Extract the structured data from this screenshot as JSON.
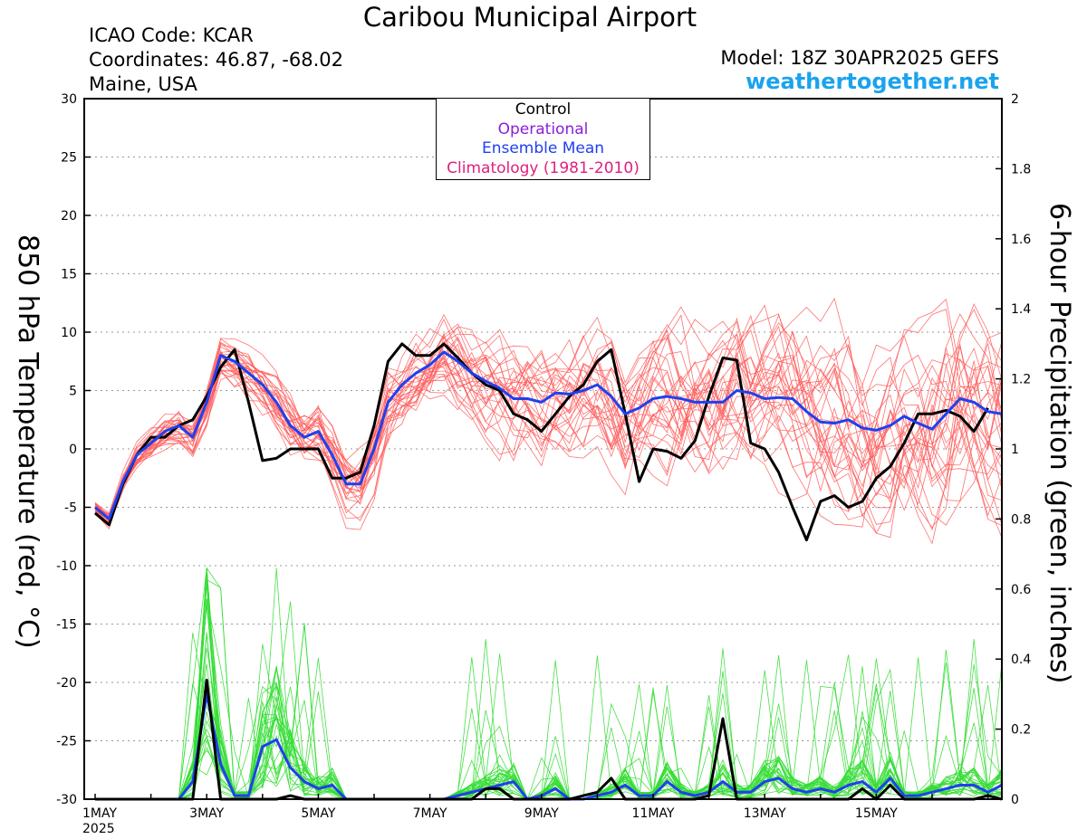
{
  "header": {
    "title": "Caribou Municipal Airport",
    "icao": "ICAO Code: KCAR",
    "coords": "Coordinates: 46.87, -68.02",
    "region": "Maine, USA",
    "model": "Model: 18Z 30APR2025 GEFS",
    "brand": "weathertogether.net"
  },
  "colors": {
    "ensemble_temp": "#ff5a5a",
    "ensemble_precip": "#33dd33",
    "control": "#000000",
    "operational": "#8a1ed8",
    "mean": "#2040ee",
    "climatology": "#e0207e",
    "brand": "#1aa3ee"
  },
  "chart_data": {
    "type": "line",
    "xlabel_ticks": [
      "1MAY\n2025",
      "3MAY",
      "5MAY",
      "7MAY",
      "9MAY",
      "11MAY",
      "13MAY",
      "15MAY"
    ],
    "x_start": "2025-05-01 00Z",
    "x_step": "6-hour",
    "ylabel_left": "850 hPa Temperature (red, °C)",
    "ylabel_right": "6-hour Precipitation (green, inches)",
    "ylim_left": [
      -30,
      30
    ],
    "yticks_left": [
      -30,
      -25,
      -20,
      -15,
      -10,
      -5,
      0,
      5,
      10,
      15,
      20,
      25,
      30
    ],
    "ylim_right": [
      0,
      2
    ],
    "yticks_right": [
      "0",
      "0.2",
      "0.4",
      "0.6",
      "0.8",
      "1",
      "1.2",
      "1.4",
      "1.6",
      "1.8",
      "2"
    ],
    "grid": true,
    "legend": {
      "position": "top-center",
      "entries": [
        "Control",
        "Operational",
        "Ensemble Mean",
        "Climatology (1981-2010)"
      ]
    },
    "series": [
      {
        "name": "Control",
        "axis": "left",
        "values": [
          -5.5,
          -6.5,
          -3,
          -0.5,
          1,
          1,
          2,
          2.5,
          4.5,
          7,
          8.5,
          4,
          -1,
          -0.8,
          0,
          0,
          0,
          -2.5,
          -2.5,
          -2,
          2,
          7.5,
          9,
          8,
          8,
          9,
          7.8,
          6.5,
          5.5,
          5,
          3,
          2.5,
          1.5,
          3,
          4.5,
          5.5,
          7.5,
          8.5,
          3,
          -2.8,
          0,
          -0.2,
          -0.8,
          0.7,
          4.5,
          7.8,
          7.6,
          0.5,
          0,
          -2,
          -5,
          -7.8,
          -4.5,
          -4,
          -5,
          -4.5,
          -2.5,
          -1.5,
          0.5,
          3,
          3,
          3.3,
          2.8,
          1.5,
          3.5
        ]
      },
      {
        "name": "Ensemble Mean",
        "axis": "left",
        "values": [
          -5,
          -6,
          -2.8,
          -0.5,
          0.5,
          1.5,
          2,
          1,
          4,
          8,
          7.5,
          6.5,
          5.5,
          4,
          2,
          1,
          1.5,
          -0.5,
          -3,
          -3,
          0,
          4,
          5.5,
          6.5,
          7.2,
          8.3,
          7.5,
          6.5,
          5.8,
          5.2,
          4.3,
          4.3,
          4,
          4.8,
          4.7,
          5,
          5.5,
          4.5,
          3,
          3.5,
          4.3,
          4.5,
          4.3,
          4,
          4,
          4,
          5,
          4.8,
          4.3,
          4.4,
          4.3,
          3.2,
          2.3,
          2.2,
          2.5,
          1.8,
          1.6,
          2,
          2.8,
          2.2,
          1.7,
          3,
          4.3,
          4,
          3.2,
          3
        ]
      },
      {
        "name": "Ensemble Mean",
        "axis": "right",
        "values": [
          0,
          0,
          0,
          0,
          0,
          0,
          0,
          0.05,
          0.3,
          0.1,
          0.01,
          0.01,
          0.15,
          0.17,
          0.09,
          0.05,
          0.03,
          0.04,
          0,
          0,
          0,
          0,
          0,
          0,
          0,
          0,
          0.01,
          0.02,
          0.03,
          0.04,
          0.05,
          0,
          0.01,
          0.03,
          0,
          0,
          0.01,
          0.02,
          0.04,
          0.01,
          0.01,
          0.05,
          0.02,
          0.01,
          0.02,
          0.05,
          0.02,
          0.02,
          0.05,
          0.06,
          0.03,
          0.02,
          0.03,
          0.02,
          0.04,
          0.05,
          0.02,
          0.06,
          0.01,
          0.01,
          0.02,
          0.03,
          0.04,
          0.04,
          0.02,
          0.04
        ]
      },
      {
        "name": "Control",
        "axis": "right",
        "values": [
          0,
          0,
          0,
          0,
          0,
          0,
          0,
          0,
          0.34,
          0,
          0,
          0,
          0,
          0,
          0.01,
          0,
          0,
          0,
          0,
          0,
          0,
          0,
          0,
          0,
          0,
          0,
          0,
          0,
          0.03,
          0.03,
          0,
          0,
          0,
          0,
          0,
          0.01,
          0.02,
          0.06,
          0,
          0,
          0,
          0,
          0,
          0,
          0.01,
          0.23,
          0,
          0,
          0,
          0,
          0,
          0,
          0,
          0,
          0,
          0.03,
          0,
          0.04,
          0,
          0,
          0,
          0,
          0,
          0,
          0.01,
          0
        ]
      }
    ]
  }
}
